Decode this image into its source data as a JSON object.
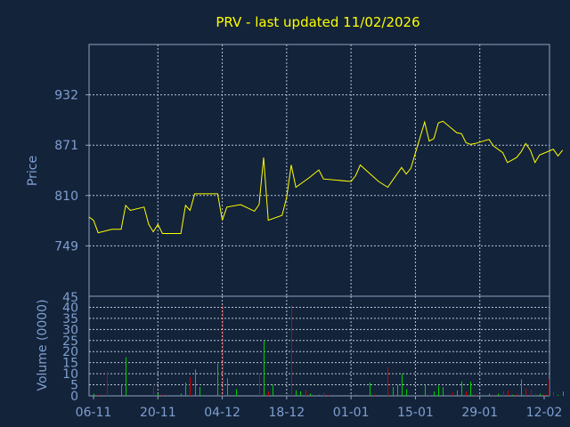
{
  "chart_data": [
    {
      "type": "line",
      "title": "PRV - last updated 11/02/2026",
      "ylabel": "Price",
      "yticks": [
        749,
        810,
        871,
        932
      ],
      "ylim": [
        688,
        993
      ],
      "x_ticks": [
        "06-11",
        "20-11",
        "04-12",
        "18-12",
        "01-01",
        "15-01",
        "29-01",
        "12-02"
      ],
      "x_dates": [
        "2025-11-06",
        "2025-11-20",
        "2025-12-04",
        "2025-12-18",
        "2026-01-01",
        "2026-01-15",
        "2026-01-29",
        "2026-02-12"
      ],
      "grid": true,
      "line_color": "#ffff00",
      "points": [
        [
          "2025-11-05",
          784
        ],
        [
          "2025-11-06",
          780
        ],
        [
          "2025-11-07",
          765
        ],
        [
          "2025-11-10",
          769
        ],
        [
          "2025-11-12",
          769
        ],
        [
          "2025-11-13",
          798
        ],
        [
          "2025-11-14",
          792
        ],
        [
          "2025-11-17",
          796
        ],
        [
          "2025-11-18",
          775
        ],
        [
          "2025-11-19",
          766
        ],
        [
          "2025-11-20",
          775
        ],
        [
          "2025-11-21",
          764
        ],
        [
          "2025-11-25",
          764
        ],
        [
          "2025-11-26",
          798
        ],
        [
          "2025-11-27",
          792
        ],
        [
          "2025-11-28",
          812
        ],
        [
          "2025-12-03",
          812
        ],
        [
          "2025-12-04",
          780
        ],
        [
          "2025-12-05",
          796
        ],
        [
          "2025-12-08",
          799
        ],
        [
          "2025-12-11",
          791
        ],
        [
          "2025-12-12",
          799
        ],
        [
          "2025-12-13",
          856
        ],
        [
          "2025-12-14",
          780
        ],
        [
          "2025-12-17",
          786
        ],
        [
          "2025-12-18",
          808
        ],
        [
          "2025-12-19",
          847
        ],
        [
          "2025-12-20",
          820
        ],
        [
          "2025-12-23",
          832
        ],
        [
          "2025-12-25",
          841
        ],
        [
          "2025-12-26",
          830
        ],
        [
          "2026-01-01",
          827
        ],
        [
          "2026-01-02",
          834
        ],
        [
          "2026-01-03",
          847
        ],
        [
          "2026-01-05",
          837
        ],
        [
          "2026-01-07",
          827
        ],
        [
          "2026-01-09",
          820
        ],
        [
          "2026-01-12",
          844
        ],
        [
          "2026-01-13",
          836
        ],
        [
          "2026-01-14",
          843
        ],
        [
          "2026-01-17",
          899
        ],
        [
          "2026-01-18",
          876
        ],
        [
          "2026-01-19",
          879
        ],
        [
          "2026-01-20",
          898
        ],
        [
          "2026-01-21",
          900
        ],
        [
          "2026-01-24",
          886
        ],
        [
          "2026-01-25",
          885
        ],
        [
          "2026-01-26",
          874
        ],
        [
          "2026-01-27",
          872
        ],
        [
          "2026-01-28",
          873
        ],
        [
          "2026-01-31",
          878
        ],
        [
          "2026-02-01",
          870
        ],
        [
          "2026-02-03",
          862
        ],
        [
          "2026-02-04",
          850
        ],
        [
          "2026-02-05",
          853
        ],
        [
          "2026-02-06",
          856
        ],
        [
          "2026-02-07",
          863
        ],
        [
          "2026-02-08",
          873
        ],
        [
          "2026-02-09",
          865
        ],
        [
          "2026-02-10",
          850
        ],
        [
          "2026-02-11",
          859
        ],
        [
          "2026-02-14",
          866
        ],
        [
          "2026-02-15",
          858
        ],
        [
          "2026-02-16",
          865
        ]
      ]
    },
    {
      "type": "bar",
      "ylabel": "Volume (0000)",
      "yticks": [
        0,
        5,
        10,
        15,
        20,
        25,
        30,
        35,
        40
      ],
      "ylim": [
        0,
        45
      ],
      "top_label": "45",
      "grid": true,
      "colors": {
        "up": "#00cc00",
        "down": "#cc0000"
      },
      "bars": [
        {
          "x": "2025-11-06",
          "v": 1,
          "c": "up"
        },
        {
          "x": "2025-11-07",
          "v": 0.5,
          "c": "down"
        },
        {
          "x": "2025-11-09",
          "v": 11,
          "c": "down"
        },
        {
          "x": "2025-11-12",
          "v": 5,
          "c": "up"
        },
        {
          "x": "2025-11-13",
          "v": 17.5,
          "c": "up"
        },
        {
          "x": "2025-11-19",
          "v": 5.5,
          "c": "down"
        },
        {
          "x": "2025-11-20",
          "v": 1,
          "c": "up"
        },
        {
          "x": "2025-11-21",
          "v": 0.5,
          "c": "down"
        },
        {
          "x": "2025-11-25",
          "v": 1,
          "c": "up"
        },
        {
          "x": "2025-11-26",
          "v": 6,
          "c": "up"
        },
        {
          "x": "2025-11-27",
          "v": 8.5,
          "c": "down"
        },
        {
          "x": "2025-11-28",
          "v": 12,
          "c": "up"
        },
        {
          "x": "2025-11-29",
          "v": 4,
          "c": "up"
        },
        {
          "x": "2025-12-03",
          "v": 14.5,
          "c": "up"
        },
        {
          "x": "2025-12-04",
          "v": 41,
          "c": "down"
        },
        {
          "x": "2025-12-05",
          "v": 8,
          "c": "up"
        },
        {
          "x": "2025-12-07",
          "v": 3,
          "c": "up"
        },
        {
          "x": "2025-12-12",
          "v": 10,
          "c": "down"
        },
        {
          "x": "2025-12-13",
          "v": 25,
          "c": "up"
        },
        {
          "x": "2025-12-14",
          "v": 2,
          "c": "down"
        },
        {
          "x": "2025-12-15",
          "v": 5,
          "c": "up"
        },
        {
          "x": "2025-12-19",
          "v": 41,
          "c": "down"
        },
        {
          "x": "2025-12-20",
          "v": 2.5,
          "c": "up"
        },
        {
          "x": "2025-12-21",
          "v": 2,
          "c": "up"
        },
        {
          "x": "2025-12-22",
          "v": 2.5,
          "c": "down"
        },
        {
          "x": "2025-12-23",
          "v": 1,
          "c": "up"
        },
        {
          "x": "2025-12-25",
          "v": 0.5,
          "c": "up"
        },
        {
          "x": "2025-12-26",
          "v": 1.5,
          "c": "down"
        },
        {
          "x": "2025-12-27",
          "v": 0.5,
          "c": "down"
        },
        {
          "x": "2026-01-01",
          "v": 0.5,
          "c": "up"
        },
        {
          "x": "2026-01-02",
          "v": 0.5,
          "c": "up"
        },
        {
          "x": "2026-01-05",
          "v": 6,
          "c": "up"
        },
        {
          "x": "2026-01-06",
          "v": 0.5,
          "c": "down"
        },
        {
          "x": "2026-01-09",
          "v": 13,
          "c": "down"
        },
        {
          "x": "2026-01-10",
          "v": 4,
          "c": "up"
        },
        {
          "x": "2026-01-11",
          "v": 5,
          "c": "up"
        },
        {
          "x": "2026-01-12",
          "v": 10,
          "c": "up"
        },
        {
          "x": "2026-01-13",
          "v": 3,
          "c": "up"
        },
        {
          "x": "2026-01-15",
          "v": 0.5,
          "c": "down"
        },
        {
          "x": "2026-01-17",
          "v": 5,
          "c": "up"
        },
        {
          "x": "2026-01-18",
          "v": 0.5,
          "c": "down"
        },
        {
          "x": "2026-01-19",
          "v": 2,
          "c": "up"
        },
        {
          "x": "2026-01-20",
          "v": 4.5,
          "c": "up"
        },
        {
          "x": "2026-01-21",
          "v": 4,
          "c": "up"
        },
        {
          "x": "2026-01-23",
          "v": 1.5,
          "c": "down"
        },
        {
          "x": "2026-01-24",
          "v": 2.5,
          "c": "up"
        },
        {
          "x": "2026-01-25",
          "v": 6.5,
          "c": "up"
        },
        {
          "x": "2026-01-26",
          "v": 2,
          "c": "down"
        },
        {
          "x": "2026-01-27",
          "v": 6.5,
          "c": "up"
        },
        {
          "x": "2026-01-28",
          "v": 0.5,
          "c": "down"
        },
        {
          "x": "2026-01-31",
          "v": 1,
          "c": "up"
        },
        {
          "x": "2026-02-01",
          "v": 0.5,
          "c": "down"
        },
        {
          "x": "2026-02-02",
          "v": 1,
          "c": "up"
        },
        {
          "x": "2026-02-03",
          "v": 2,
          "c": "down"
        },
        {
          "x": "2026-02-04",
          "v": 2.5,
          "c": "down"
        },
        {
          "x": "2026-02-05",
          "v": 0.5,
          "c": "up"
        },
        {
          "x": "2026-02-06",
          "v": 1,
          "c": "down"
        },
        {
          "x": "2026-02-07",
          "v": 7.5,
          "c": "up"
        },
        {
          "x": "2026-02-08",
          "v": 3.5,
          "c": "down"
        },
        {
          "x": "2026-02-09",
          "v": 2.5,
          "c": "down"
        },
        {
          "x": "2026-02-10",
          "v": 1,
          "c": "down"
        },
        {
          "x": "2026-02-11",
          "v": 1,
          "c": "up"
        },
        {
          "x": "2026-02-12",
          "v": 0.5,
          "c": "down"
        },
        {
          "x": "2026-02-13",
          "v": 7.5,
          "c": "down"
        },
        {
          "x": "2026-02-14",
          "v": 2,
          "c": "down"
        },
        {
          "x": "2026-02-15",
          "v": 0.5,
          "c": "up"
        },
        {
          "x": "2026-02-16",
          "v": 2,
          "c": "up"
        }
      ]
    }
  ]
}
